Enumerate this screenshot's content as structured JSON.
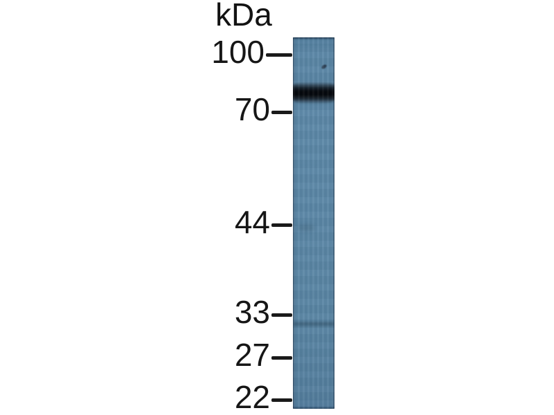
{
  "figure": {
    "type": "western-blot",
    "background_color": "#ffffff",
    "text_color": "#161616",
    "unit_label": "kDa",
    "markers": [
      {
        "label": "100"
      },
      {
        "label": "70"
      },
      {
        "label": "44"
      },
      {
        "label": "33"
      },
      {
        "label": "27"
      },
      {
        "label": "22"
      }
    ],
    "lane": {
      "fill_color": "#5b87a6",
      "band_color": "#05070b",
      "bands": [
        {
          "id": "main-band",
          "intensity": "strong",
          "position": "between 100 and 70 markers, just above the 70 tick"
        },
        {
          "id": "secondary-band",
          "intensity": "very faint",
          "position": "just below the 33 tick"
        }
      ],
      "artifacts": [
        {
          "id": "speck",
          "position": "upper lane, between the 100 tick and the main band"
        }
      ]
    }
  }
}
